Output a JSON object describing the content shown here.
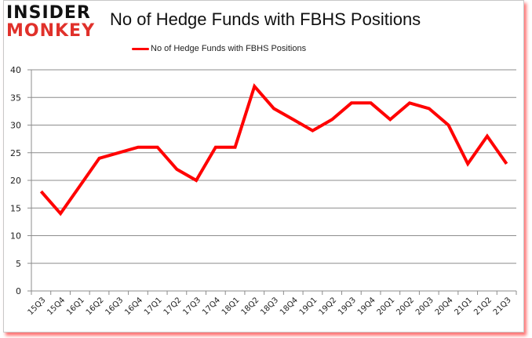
{
  "logo": {
    "line1": "INSIDER",
    "line2": "MONKEY"
  },
  "chart_data": {
    "type": "line",
    "title": "No of Hedge Funds with FBHS Positions",
    "xlabel": "",
    "ylabel": "",
    "ylim": [
      0,
      40
    ],
    "yticks": [
      0,
      5,
      10,
      15,
      20,
      25,
      30,
      35,
      40
    ],
    "grid": true,
    "legend_position": "top",
    "categories": [
      "15Q3",
      "15Q4",
      "16Q1",
      "16Q2",
      "16Q3",
      "16Q4",
      "17Q1",
      "17Q2",
      "17Q3",
      "17Q4",
      "18Q1",
      "18Q2",
      "18Q3",
      "18Q4",
      "19Q1",
      "19Q2",
      "19Q3",
      "19Q4",
      "20Q1",
      "20Q2",
      "20Q3",
      "20Q4",
      "21Q1",
      "21Q2",
      "21Q3"
    ],
    "series": [
      {
        "name": "No of Hedge Funds with FBHS Positions",
        "color": "#ff0000",
        "values": [
          18,
          14,
          19,
          24,
          25,
          26,
          26,
          22,
          20,
          26,
          26,
          37,
          33,
          31,
          29,
          31,
          34,
          34,
          31,
          34,
          33,
          30,
          23,
          28,
          23
        ]
      }
    ]
  }
}
